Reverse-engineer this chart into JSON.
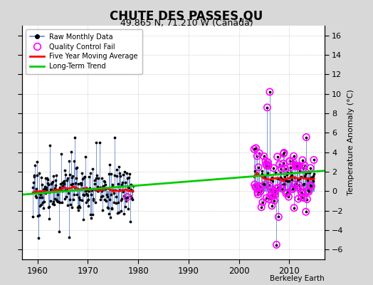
{
  "title": "CHUTE DES PASSES,QU",
  "subtitle": "49.865 N, 71.210 W (Canada)",
  "ylabel": "Temperature Anomaly (°C)",
  "credit": "Berkeley Earth",
  "ylim": [
    -7,
    17
  ],
  "yticks": [
    -6,
    -4,
    -2,
    0,
    2,
    4,
    6,
    8,
    10,
    12,
    14,
    16
  ],
  "xlim": [
    1957,
    2017
  ],
  "xticks": [
    1960,
    1970,
    1980,
    1990,
    2000,
    2010
  ],
  "bg_color": "#d8d8d8",
  "plot_bg_color": "#ffffff",
  "grid_color": "#bbbbbb",
  "raw_line_color": "#6688cc",
  "raw_dot_color": "#000000",
  "qc_color": "#ff00ff",
  "moving_avg_color": "#ff0000",
  "trend_color": "#00cc00",
  "trend_x": [
    1957,
    2017
  ],
  "trend_y": [
    -0.35,
    2.1
  ],
  "period1_start": 1959,
  "period1_end": 1978,
  "period2_start": 2003,
  "period2_end": 2014,
  "period1_mean": 0.0,
  "period1_std": 1.4,
  "period2_mean": 1.5,
  "period2_std": 1.5
}
